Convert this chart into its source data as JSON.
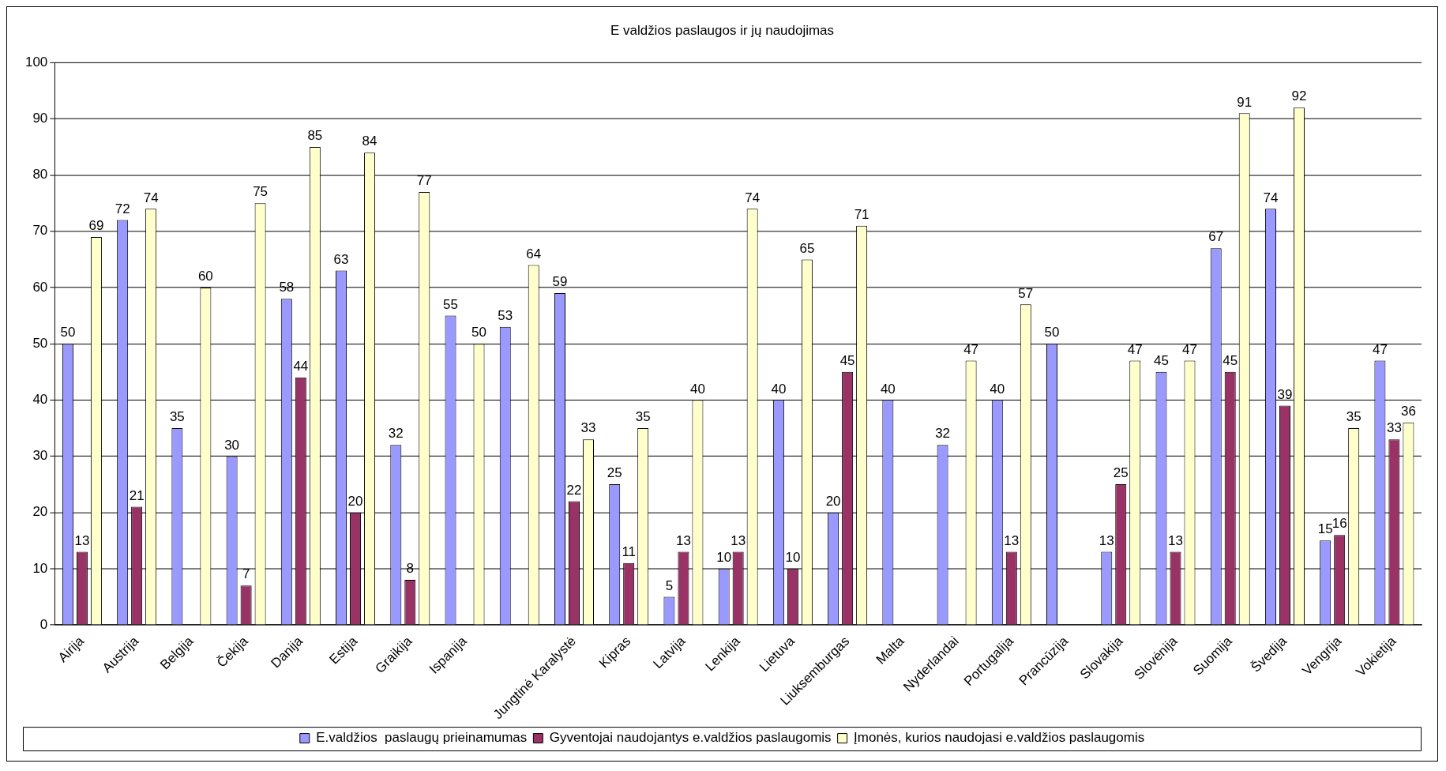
{
  "chart_data": {
    "type": "bar",
    "title": "E valdžios paslaugos ir jų naudojimas",
    "categories": [
      "Airija",
      "Austrija",
      "Belgija",
      "Čekija",
      "Danija",
      "Estija",
      "Graikija",
      "Ispanija",
      null,
      "Jungtinė Karalystė",
      "Kipras",
      "Latvija",
      "Lenkija",
      "Lietuva",
      "Liuksemburgas",
      "Malta",
      "Nyderlandai",
      "Portugalija",
      "Prancūzija",
      "Slovakija",
      "Slovėnija",
      "Suomija",
      "Švedija",
      "Vengrija",
      "Vokietija"
    ],
    "series": [
      {
        "name": "E.valdžios  paslaugų prieinamumas",
        "color": "#9999ff",
        "values": [
          50,
          72,
          35,
          30,
          58,
          63,
          32,
          55,
          53,
          59,
          25,
          5,
          10,
          40,
          20,
          40,
          32,
          40,
          50,
          13,
          45,
          67,
          74,
          15,
          47
        ]
      },
      {
        "name": "Gyventojai naudojantys e.valdžios paslaugomis",
        "color": "#993366",
        "values": [
          13,
          21,
          null,
          7,
          44,
          20,
          8,
          null,
          null,
          22,
          11,
          13,
          13,
          10,
          45,
          null,
          null,
          13,
          null,
          25,
          13,
          45,
          39,
          16,
          33
        ]
      },
      {
        "name": "Įmonės, kurios naudojasi e.valdžios paslaugomis",
        "color": "#ffffcc",
        "values": [
          69,
          74,
          60,
          75,
          85,
          84,
          77,
          50,
          64,
          33,
          35,
          40,
          74,
          65,
          71,
          null,
          47,
          57,
          null,
          47,
          47,
          91,
          92,
          35,
          36
        ]
      }
    ],
    "ylim": [
      0,
      100
    ],
    "yticks": [
      0,
      10,
      20,
      30,
      40,
      50,
      60,
      70,
      80,
      90,
      100
    ],
    "grid": "y",
    "legend": "bottom",
    "data_labels": true
  }
}
